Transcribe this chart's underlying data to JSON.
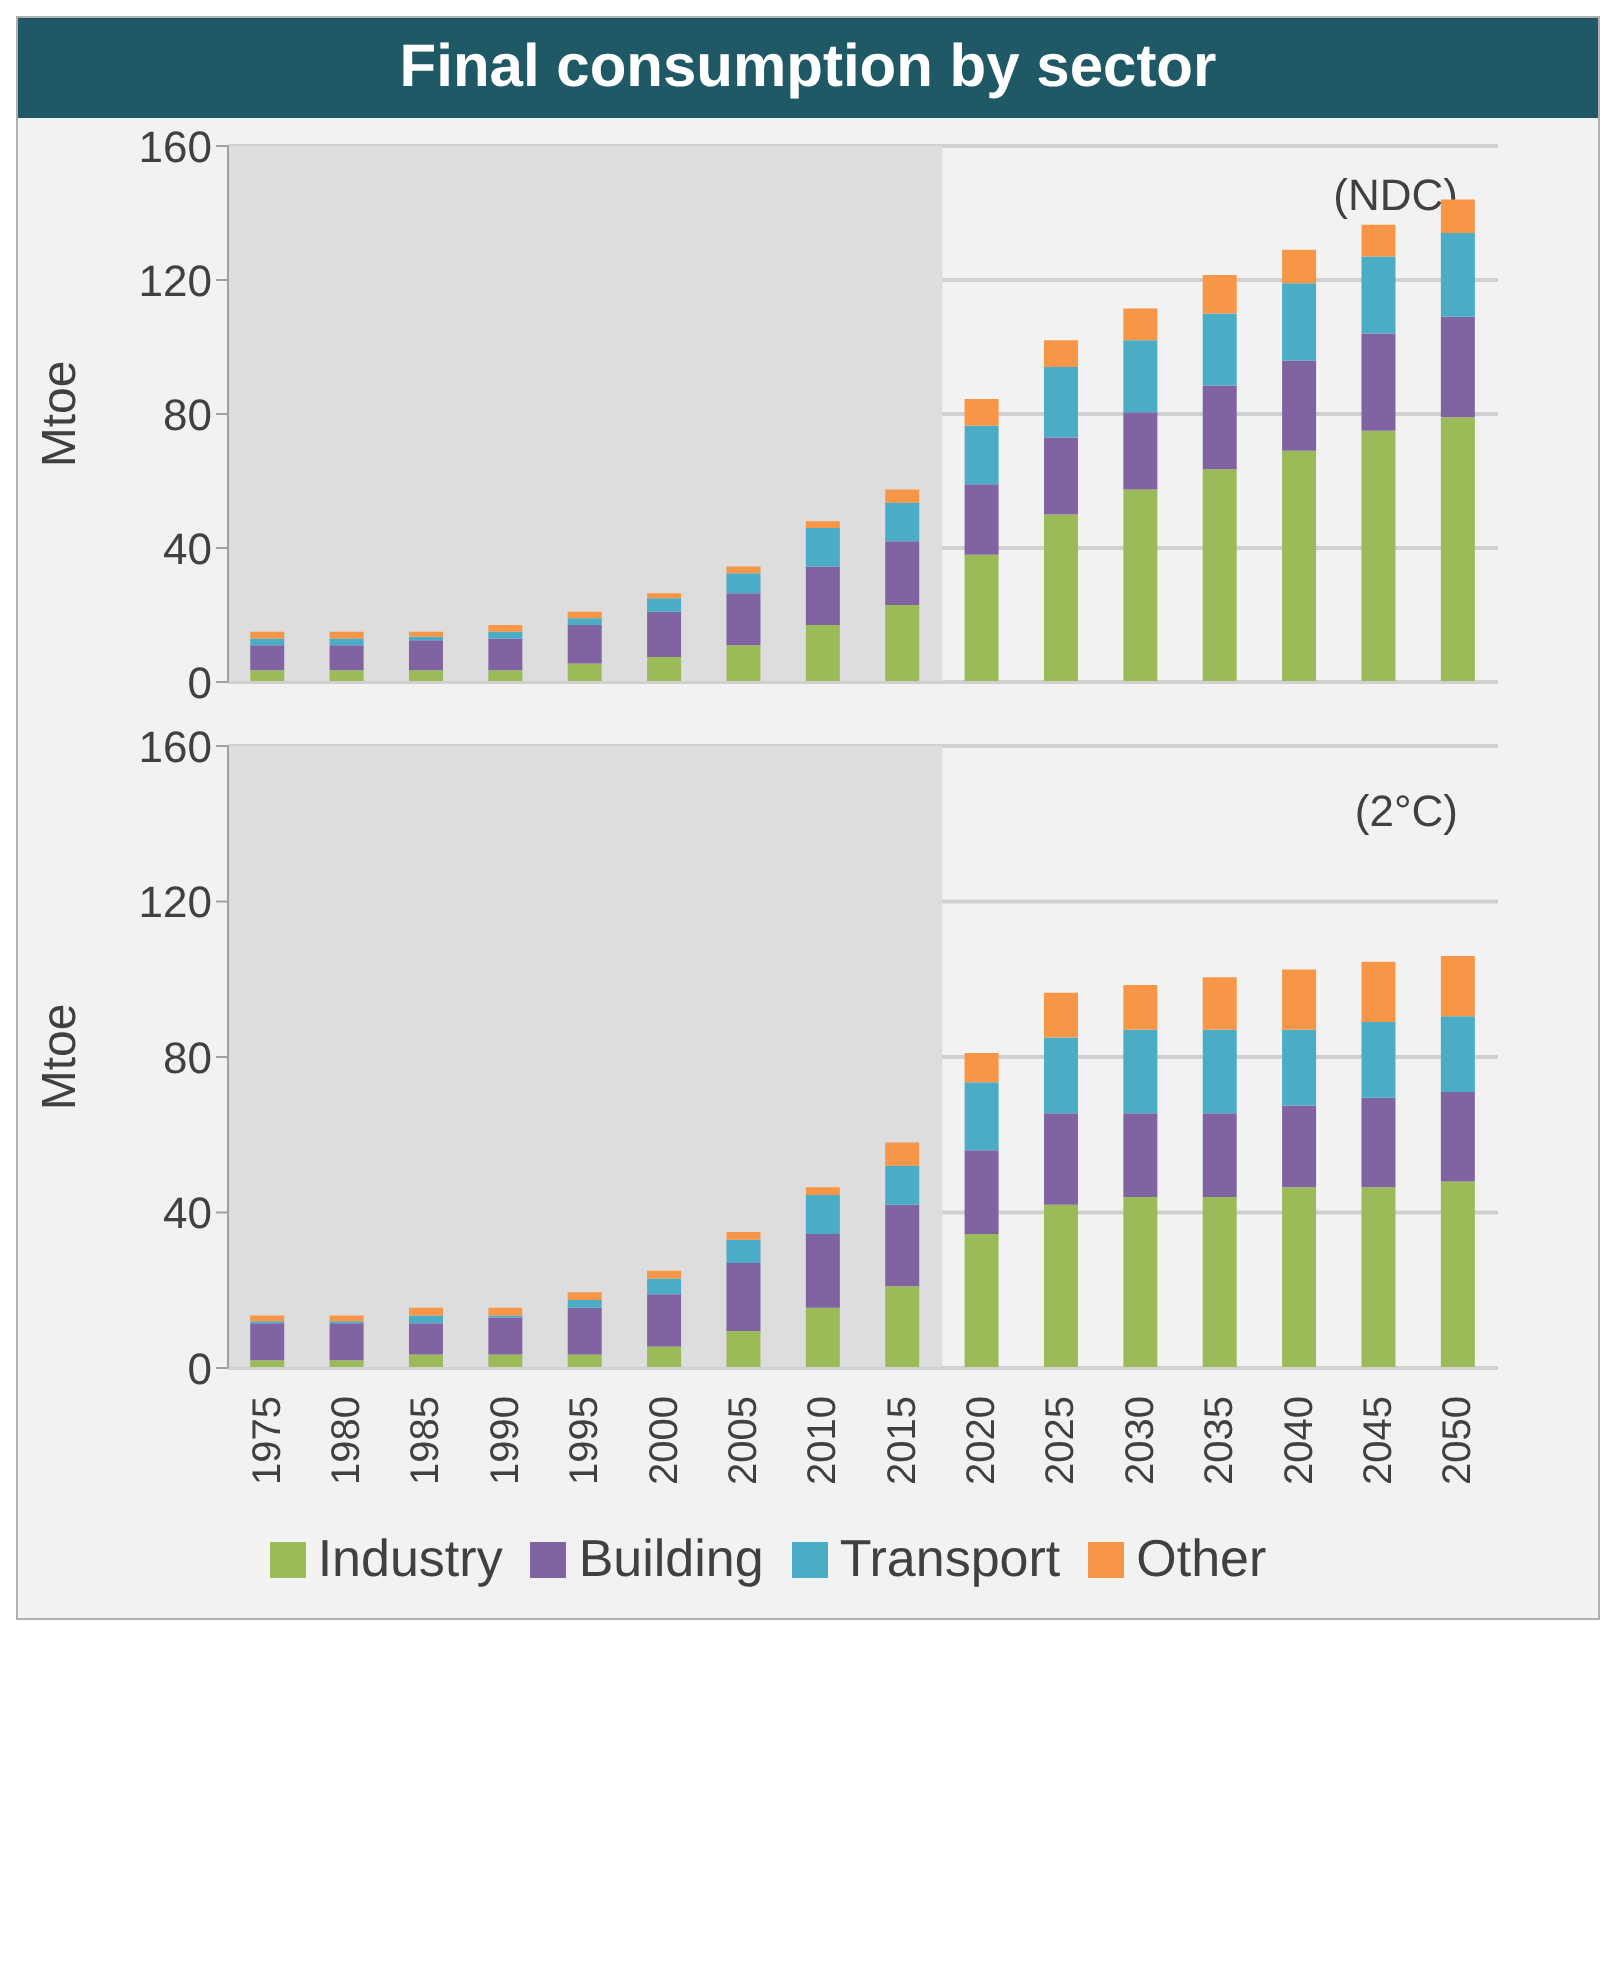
{
  "chart_data": [
    {
      "type": "bar",
      "title": "Final consumption by sector",
      "subtitle": "(NDC)",
      "ylabel": "Mtoe",
      "stacked": true,
      "categories": [
        "1975",
        "1980",
        "1985",
        "1990",
        "1995",
        "2000",
        "2005",
        "2010",
        "2015",
        "2020",
        "2025",
        "2030",
        "2035",
        "2040",
        "2045",
        "2050"
      ],
      "series": [
        {
          "color": "#9bbb59",
          "values": [
            3.5,
            3.5,
            3.5,
            3.5,
            5.5,
            7.5,
            11,
            17,
            23,
            38,
            50,
            57.5,
            63.5,
            69,
            75,
            79
          ]
        },
        {
          "color": "#8064a2",
          "values": [
            7.5,
            7.5,
            9,
            9.5,
            11.5,
            13.5,
            15.5,
            17.5,
            19,
            21,
            23,
            23,
            25,
            27,
            29,
            30
          ]
        },
        {
          "color": "#4bacc6",
          "values": [
            2,
            2,
            1,
            2,
            2,
            4,
            6,
            11.5,
            11.5,
            17.5,
            21,
            21.5,
            21.5,
            23,
            23,
            25
          ]
        },
        {
          "color": "#f79646",
          "values": [
            2,
            2,
            1.5,
            2,
            2,
            1.5,
            2,
            2,
            4,
            8,
            8,
            9.5,
            11.5,
            10,
            9.5,
            10
          ]
        }
      ],
      "ylim": [
        0,
        160
      ],
      "yticks": [
        0,
        40,
        80,
        120,
        160
      ],
      "grid": "y",
      "legend": false,
      "tick_labels": "y",
      "bands": [
        {
          "axis": "x",
          "from": "1975",
          "to": "2015",
          "color": "#dddddd"
        }
      ]
    },
    {
      "type": "bar",
      "subtitle": "(2°C)",
      "ylabel": "Mtoe",
      "stacked": true,
      "categories": [
        "1975",
        "1980",
        "1985",
        "1990",
        "1995",
        "2000",
        "2005",
        "2010",
        "2015",
        "2020",
        "2025",
        "2030",
        "2035",
        "2040",
        "2045",
        "2050"
      ],
      "series": [
        {
          "name": "Industry",
          "color": "#9bbb59",
          "values": [
            2,
            2,
            3.5,
            3.5,
            3.5,
            5.5,
            9.5,
            15.5,
            21,
            34.5,
            42,
            44,
            44,
            46.5,
            46.5,
            48
          ]
        },
        {
          "name": "Building",
          "color": "#8064a2",
          "values": [
            9.5,
            9.5,
            8,
            9.5,
            12,
            13.5,
            17.5,
            19,
            21,
            21.5,
            23.5,
            21.5,
            21.5,
            21,
            23,
            23
          ]
        },
        {
          "name": "Transport",
          "color": "#4bacc6",
          "values": [
            0.5,
            0.5,
            2,
            0.5,
            2,
            4,
            6,
            10,
            10,
            17.5,
            19.5,
            21.5,
            21.5,
            19.5,
            19.5,
            19.5
          ]
        },
        {
          "name": "Other",
          "color": "#f79646",
          "values": [
            1.5,
            1.5,
            2,
            2,
            2,
            2,
            2,
            2,
            6,
            7.5,
            11.5,
            11.5,
            13.5,
            15.5,
            15.5,
            15.5
          ]
        }
      ],
      "ylim": [
        0,
        160
      ],
      "yticks": [
        0,
        40,
        80,
        120,
        160
      ],
      "grid": "y",
      "legend": "bottom",
      "bands": [
        {
          "axis": "x",
          "from": "1975",
          "to": "2015",
          "color": "#dddddd"
        }
      ]
    }
  ]
}
